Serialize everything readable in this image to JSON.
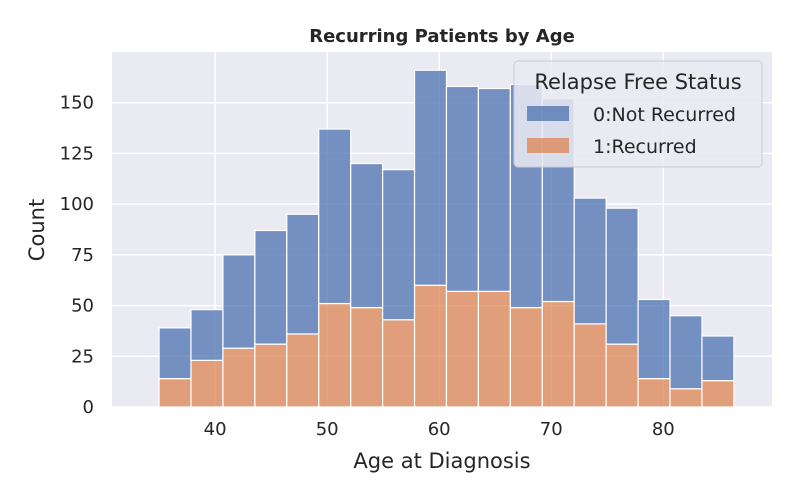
{
  "chart_data": {
    "type": "bar",
    "stacked": true,
    "title": "Recurring Patients by Age",
    "xlabel": "Age at Diagnosis",
    "ylabel": "Count",
    "xlim": [
      30.8,
      89.7
    ],
    "ylim": [
      0,
      175
    ],
    "xticks": [
      40,
      50,
      60,
      70,
      80
    ],
    "yticks": [
      0,
      25,
      50,
      75,
      100,
      125,
      150
    ],
    "grid": true,
    "legend": {
      "title": "Relapse Free Status",
      "placement": "top-right"
    },
    "bin_edges": [
      35.0,
      37.85,
      40.7,
      43.55,
      46.4,
      49.25,
      52.1,
      54.95,
      57.8,
      60.65,
      63.5,
      66.35,
      69.2,
      72.05,
      74.9,
      77.75,
      80.6,
      83.45,
      86.3
    ],
    "series": [
      {
        "name": "0:Not Recurred",
        "color": "#4c72b0",
        "values": [
          25,
          25,
          46,
          56,
          59,
          86,
          71,
          74,
          106,
          101,
          100,
          110,
          100,
          62,
          67,
          39,
          36,
          22
        ]
      },
      {
        "name": "1:Recurred",
        "color": "#dd8452",
        "values": [
          14,
          23,
          29,
          31,
          36,
          51,
          49,
          43,
          60,
          57,
          57,
          49,
          52,
          41,
          31,
          14,
          9,
          13
        ]
      }
    ]
  }
}
